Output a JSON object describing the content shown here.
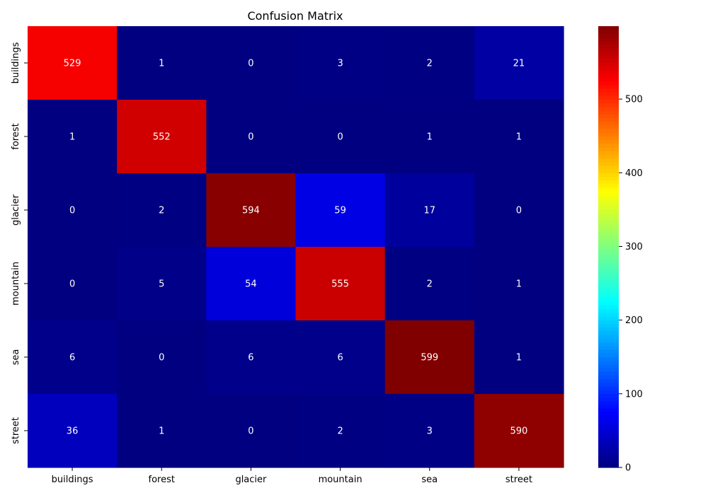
{
  "chart_data": {
    "type": "heatmap",
    "title": "Confusion Matrix",
    "xlabel": "",
    "ylabel": "",
    "x_categories": [
      "buildings",
      "forest",
      "glacier",
      "mountain",
      "sea",
      "street"
    ],
    "y_categories": [
      "buildings",
      "forest",
      "glacier",
      "mountain",
      "sea",
      "street"
    ],
    "values": [
      [
        529,
        1,
        0,
        3,
        2,
        21
      ],
      [
        1,
        552,
        0,
        0,
        1,
        1
      ],
      [
        0,
        2,
        594,
        59,
        17,
        0
      ],
      [
        0,
        5,
        54,
        555,
        2,
        1
      ],
      [
        6,
        0,
        6,
        6,
        599,
        1
      ],
      [
        36,
        1,
        0,
        2,
        3,
        590
      ]
    ],
    "colormap": "jet",
    "colorbar": {
      "min": 0,
      "max": 599,
      "ticks": [
        0,
        100,
        200,
        300,
        400,
        500
      ]
    },
    "grid": false
  }
}
